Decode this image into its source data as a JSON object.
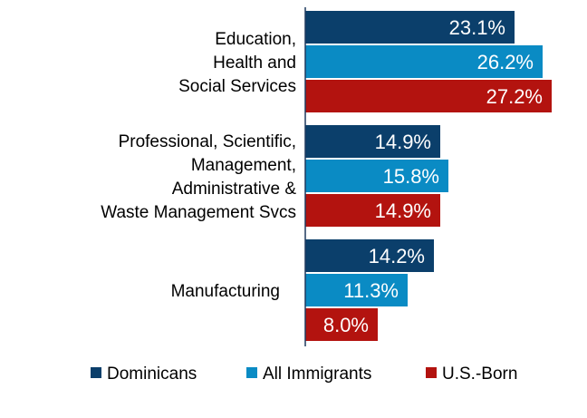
{
  "chart_data": {
    "type": "bar",
    "orientation": "horizontal",
    "categories": [
      [
        "Education,",
        "Health and",
        "Social Services"
      ],
      [
        "Professional, Scientific,",
        "Management,",
        "Administrative &",
        "Waste Management Svcs"
      ],
      [
        "Manufacturing"
      ]
    ],
    "series": [
      {
        "name": "Dominicans",
        "values": [
          23.1,
          14.9,
          14.2
        ],
        "labels": [
          "23.1%",
          "14.9%",
          "14.2%"
        ],
        "color": "#0b3f6b"
      },
      {
        "name": "All Immigrants",
        "values": [
          26.2,
          15.8,
          11.3
        ],
        "labels": [
          "26.2%",
          "15.8%",
          "11.3%"
        ],
        "color": "#0a8bc4"
      },
      {
        "name": "U.S.-Born",
        "values": [
          27.2,
          14.9,
          8.0
        ],
        "labels": [
          "27.2%",
          "14.9%",
          "8.0%"
        ],
        "color": "#b3130f"
      }
    ],
    "xlim": [
      0,
      30
    ],
    "grid": false,
    "legend": "bottom"
  }
}
